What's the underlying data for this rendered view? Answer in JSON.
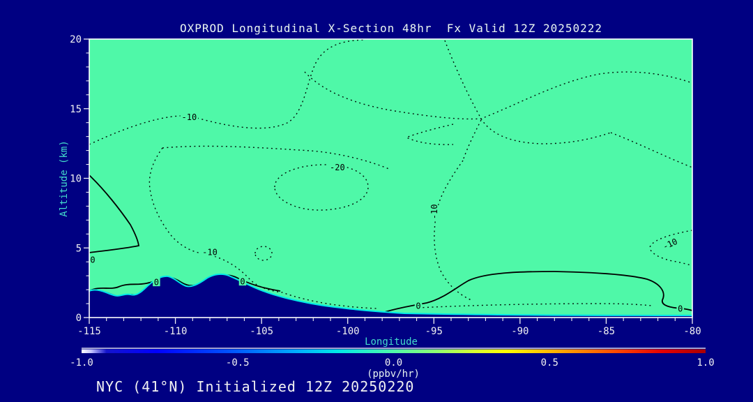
{
  "title": "OXPROD Longitudinal X-Section 48hr  Fx Valid 12Z 20250222",
  "footer": "NYC (41°N) Initialized 12Z 20250220",
  "colors": {
    "background": "#000082",
    "field_fill": "#4FF8A8",
    "frame": "#FFFFFF",
    "axis_title": "#43DCCB",
    "tick_label": "#F2F2F2",
    "title_text": "#EAF6F0",
    "contour_line": "#000000",
    "terrain": "#000082",
    "fringe_cyan": "#00E8E8",
    "fringe_blue": "#2B50E8"
  },
  "chart_data": {
    "type": "contour",
    "title": "OXPROD Longitudinal X-Section 48hr  Fx Valid 12Z 20250222",
    "subtitle": "NYC (41°N) Initialized 12Z 20250220",
    "xlabel": "Longitude",
    "ylabel": "Altitude (km)",
    "x_range": [
      -115,
      -80
    ],
    "y_range": [
      0,
      20
    ],
    "x_ticks": [
      -115,
      -110,
      -105,
      -100,
      -95,
      -90,
      -85,
      -80
    ],
    "y_ticks": [
      0,
      5,
      10,
      15,
      20
    ],
    "x_minor_step": 1,
    "y_minor_step": 1,
    "grid": false,
    "contour_levels_dotted": [
      -20,
      -10
    ],
    "contour_levels_solid": [
      0
    ],
    "contour_labels": [
      {
        "text": "-10",
        "lon": -109.2,
        "alt": 14.4,
        "rot": 0
      },
      {
        "text": "-20",
        "lon": -100.6,
        "alt": 10.8,
        "rot": 0
      },
      {
        "text": "-10",
        "lon": -95.0,
        "alt": 7.6,
        "rot": -90
      },
      {
        "text": "-10",
        "lon": -108.0,
        "alt": 4.7,
        "rot": 0
      },
      {
        "text": "-10",
        "lon": -81.3,
        "alt": 5.3,
        "rot": -25
      },
      {
        "text": "0",
        "lon": -114.8,
        "alt": 4.15,
        "rot": 0
      },
      {
        "text": "0",
        "lon": -111.1,
        "alt": 2.55,
        "rot": 0
      },
      {
        "text": "0",
        "lon": -106.1,
        "alt": 2.6,
        "rot": 0
      },
      {
        "text": "0",
        "lon": -95.9,
        "alt": 0.85,
        "rot": 0
      },
      {
        "text": "0",
        "lon": -80.7,
        "alt": 0.65,
        "rot": 0
      }
    ],
    "features": [
      "closed -20 ppbv/hr minimum centered near lon -101.5, alt 9.5 km",
      "broad -10 region over lon -113 to -82, alt 2 to 17 km",
      "solid 0 contour wedge at west edge below 10 km",
      "solid 0 contour dome over lon -96 to -80 below ~3.2 km",
      "strong negative (blue/cyan) shallow layer hugging terrain surface"
    ],
    "terrain_profile_km": [
      [
        -115,
        1.85
      ],
      [
        -113.5,
        1.45
      ],
      [
        -112.5,
        1.6
      ],
      [
        -111.5,
        1.55
      ],
      [
        -110.5,
        2.85
      ],
      [
        -109.8,
        2.3
      ],
      [
        -108.5,
        2.6
      ],
      [
        -106.9,
        2.95
      ],
      [
        -105.5,
        2.0
      ],
      [
        -103.5,
        1.2
      ],
      [
        -101,
        0.85
      ],
      [
        -98.5,
        0.45
      ],
      [
        -96,
        0.3
      ],
      [
        -93,
        0.2
      ],
      [
        -88,
        0.15
      ],
      [
        -83,
        0.12
      ],
      [
        -80,
        0.1
      ]
    ],
    "colorbar": {
      "min": -1.0,
      "max": 1.0,
      "ticks": [
        -1.0,
        -0.5,
        0.0,
        0.5,
        1.0
      ],
      "units_label": "(ppbv/hr)",
      "palette_stops": [
        [
          "0%",
          "#FFFFFF"
        ],
        [
          "1.5%",
          "#C8C8FF"
        ],
        [
          "4%",
          "#1414CD"
        ],
        [
          "12%",
          "#0000FF"
        ],
        [
          "24%",
          "#0055FF"
        ],
        [
          "34%",
          "#00AAFF"
        ],
        [
          "41%",
          "#00E8E8"
        ],
        [
          "50%",
          "#50FAAA"
        ],
        [
          "57%",
          "#90FF70"
        ],
        [
          "63%",
          "#D8FF30"
        ],
        [
          "68%",
          "#FFFF00"
        ],
        [
          "77%",
          "#FFA500"
        ],
        [
          "86%",
          "#FF4500"
        ],
        [
          "93%",
          "#E60000"
        ],
        [
          "100%",
          "#A80000"
        ]
      ]
    }
  }
}
